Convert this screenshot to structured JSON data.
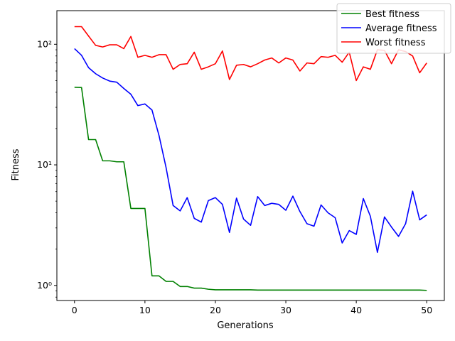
{
  "chart_data": {
    "type": "line",
    "title": "",
    "xlabel": "Generations",
    "ylabel": "Fitness",
    "yscale": "log",
    "xlim": [
      -2.5,
      52.5
    ],
    "ylim": [
      0.75,
      190
    ],
    "xticks": [
      0,
      10,
      20,
      30,
      40,
      50
    ],
    "xtick_labels": [
      "0",
      "10",
      "20",
      "30",
      "40",
      "50"
    ],
    "yticks": [
      1,
      10,
      100
    ],
    "ytick_labels": [
      "10⁰",
      "10¹",
      "10²"
    ],
    "legend_position": "top-right",
    "grid": false,
    "x": [
      0,
      1,
      2,
      3,
      4,
      5,
      6,
      7,
      8,
      9,
      10,
      11,
      12,
      13,
      14,
      15,
      16,
      17,
      18,
      19,
      20,
      21,
      22,
      23,
      24,
      25,
      26,
      27,
      28,
      29,
      30,
      31,
      32,
      33,
      34,
      35,
      36,
      37,
      38,
      39,
      40,
      41,
      42,
      43,
      44,
      45,
      46,
      47,
      48,
      49,
      50
    ],
    "series": [
      {
        "name": "Best fitness",
        "color": "#008000",
        "values": [
          44,
          43.8,
          16.2,
          16.2,
          10.8,
          10.8,
          10.6,
          10.6,
          4.35,
          4.35,
          4.35,
          1.2,
          1.2,
          1.08,
          1.08,
          0.98,
          0.98,
          0.95,
          0.95,
          0.93,
          0.92,
          0.92,
          0.92,
          0.92,
          0.92,
          0.92,
          0.915,
          0.915,
          0.915,
          0.915,
          0.915,
          0.915,
          0.915,
          0.915,
          0.915,
          0.915,
          0.915,
          0.915,
          0.915,
          0.915,
          0.915,
          0.915,
          0.915,
          0.915,
          0.915,
          0.915,
          0.915,
          0.915,
          0.915,
          0.915,
          0.91
        ]
      },
      {
        "name": "Average fitness",
        "color": "#0000ff",
        "values": [
          92,
          81,
          64,
          57,
          52.5,
          49.5,
          48.5,
          43,
          38.5,
          31,
          32,
          28.5,
          17.5,
          9.5,
          4.6,
          4.15,
          5.35,
          3.6,
          3.35,
          5.05,
          5.35,
          4.7,
          2.75,
          5.3,
          3.55,
          3.15,
          5.45,
          4.6,
          4.8,
          4.7,
          4.2,
          5.5,
          4.1,
          3.25,
          3.1,
          4.65,
          4.0,
          3.65,
          2.25,
          2.85,
          2.65,
          5.25,
          3.75,
          1.88,
          3.7,
          3.05,
          2.55,
          3.25,
          6.05,
          3.5,
          3.85
        ]
      },
      {
        "name": "Worst fitness",
        "color": "#ff0000",
        "values": [
          140,
          140,
          117,
          98,
          95,
          99,
          99,
          92,
          116,
          78,
          81,
          78,
          82,
          82,
          62,
          68,
          69,
          86,
          62,
          65,
          69,
          88,
          51,
          67,
          68,
          65,
          69,
          74,
          77,
          70,
          77,
          74,
          60,
          70,
          69,
          79,
          78,
          81,
          71,
          86,
          50,
          65,
          62,
          90,
          89,
          69,
          90,
          87,
          80,
          58,
          70
        ]
      }
    ]
  }
}
